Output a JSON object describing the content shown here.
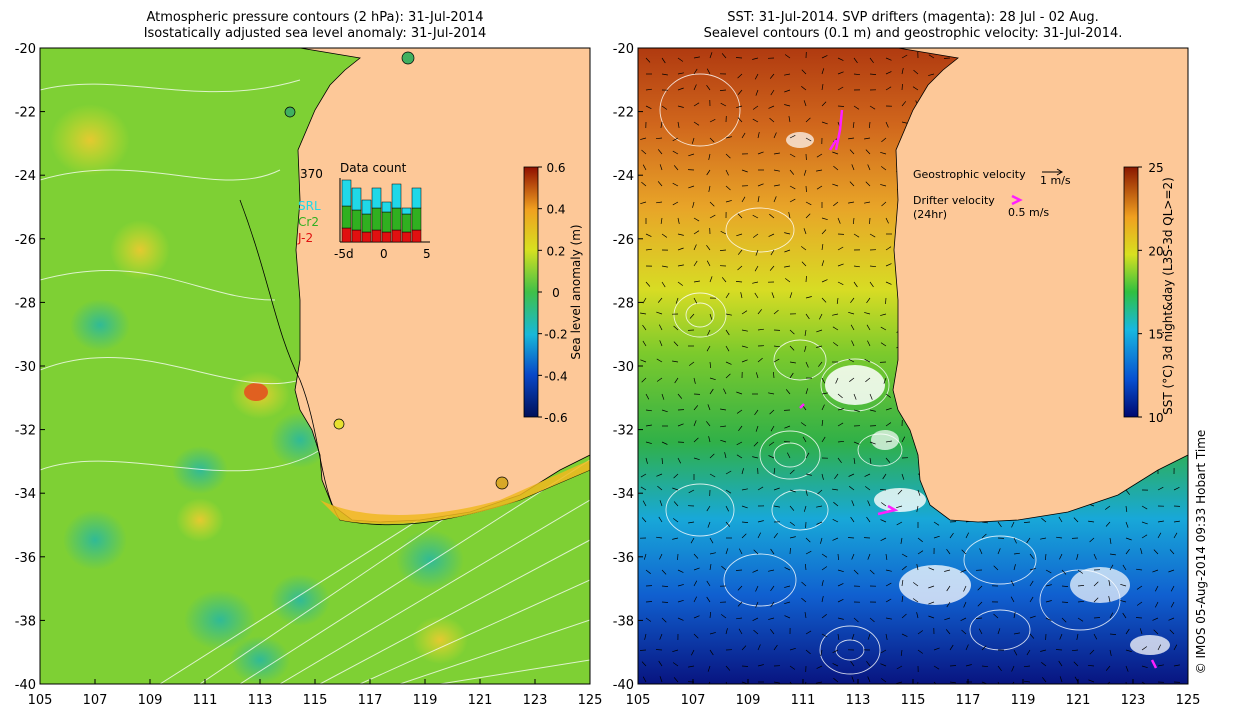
{
  "left_panel": {
    "title_line1": "Atmospheric pressure contours (2 hPa): 31-Jul-2014",
    "title_line2": "Isostatically adjusted sea level anomaly: 31-Jul-2014",
    "colorbar": {
      "label": "Sea level anomaly (m)",
      "ticks": [
        "0.6",
        "0.4",
        "0.2",
        "0",
        "-0.2",
        "-0.4",
        "-0.6"
      ]
    },
    "inset": {
      "max_label": "370",
      "title": "Data count",
      "legend": [
        "SRL",
        "Cr2",
        "J-2"
      ],
      "xticks": [
        "-5d",
        "0",
        "5"
      ]
    }
  },
  "right_panel": {
    "title_line1": "SST: 31-Jul-2014. SVP drifters (magenta): 28 Jul - 02 Aug.",
    "title_line2": "Sealevel contours (0.1 m) and geostrophic velocity: 31-Jul-2014.",
    "colorbar": {
      "label": "SST (°C) 3d night&day (L3S-3d QL>=2)",
      "ticks": [
        "25",
        "20",
        "15",
        "10"
      ]
    },
    "legend": {
      "geo_label": "Geostrophic velocity",
      "geo_scale": "1 m/s",
      "drifter_label1": "Drifter velocity",
      "drifter_label2": "(24hr)",
      "drifter_scale": "0.5 m/s"
    }
  },
  "axes": {
    "y_ticks": [
      "-20",
      "-22",
      "-24",
      "-26",
      "-28",
      "-30",
      "-32",
      "-34",
      "-36",
      "-38",
      "-40"
    ],
    "x_ticks": [
      "105",
      "107",
      "109",
      "111",
      "113",
      "115",
      "117",
      "119",
      "121",
      "123",
      "125"
    ]
  },
  "credit": "© IMOS 05-Aug-2014 09:33 Hobart Time",
  "colors": {
    "land": "#fdc898",
    "sla_base": "#7ed034",
    "sst_warm": "#c8641c",
    "sst_cool": "#1a9ad8",
    "drifter": "#ff20ff"
  }
}
